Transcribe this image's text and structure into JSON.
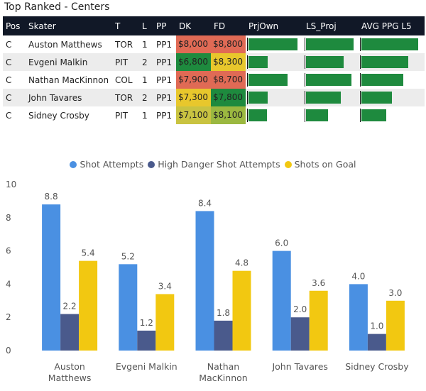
{
  "title": "Top Ranked - Centers",
  "table": {
    "columns": [
      "Pos",
      "Skater",
      "T",
      "L",
      "PP",
      "DK",
      "FD",
      "PrjOwn",
      "LS_Proj",
      "AVG PPG L5"
    ],
    "rows": [
      {
        "pos": "C",
        "skater": "Auston Matthews",
        "team": "TOR",
        "line": "1",
        "pp": "PP1",
        "dk": "$8,000",
        "fd": "$8,800",
        "dk_color": "#e06a55",
        "fd_color": "#e06a55",
        "prjown": 0.98,
        "ls_proj": 0.98,
        "avg_ppg": 0.98
      },
      {
        "pos": "C",
        "skater": "Evgeni Malkin",
        "team": "PIT",
        "line": "2",
        "pp": "PP1",
        "dk": "$6,800",
        "fd": "$8,300",
        "dk_color": "#1e8a3e",
        "fd_color": "#e8c72c",
        "prjown": 0.38,
        "ls_proj": 0.78,
        "avg_ppg": 0.8
      },
      {
        "pos": "C",
        "skater": "Nathan MacKinnon",
        "team": "COL",
        "line": "1",
        "pp": "PP1",
        "dk": "$7,900",
        "fd": "$8,700",
        "dk_color": "#e06a55",
        "fd_color": "#e06a55",
        "prjown": 0.77,
        "ls_proj": 0.94,
        "avg_ppg": 0.72
      },
      {
        "pos": "C",
        "skater": "John Tavares",
        "team": "TOR",
        "line": "2",
        "pp": "PP1",
        "dk": "$7,300",
        "fd": "$7,800",
        "dk_color": "#e8c72c",
        "fd_color": "#1e8a3e",
        "prjown": 0.38,
        "ls_proj": 0.72,
        "avg_ppg": 0.52
      },
      {
        "pos": "C",
        "skater": "Sidney Crosby",
        "team": "PIT",
        "line": "1",
        "pp": "PP1",
        "dk": "$7,100",
        "fd": "$8,100",
        "dk_color": "#c9c341",
        "fd_color": "#9bb840",
        "prjown": 0.36,
        "ls_proj": 0.46,
        "avg_ppg": 0.43
      }
    ]
  },
  "chart_data": {
    "type": "bar",
    "categories": [
      [
        "Auston",
        "Matthews"
      ],
      [
        "Evgeni Malkin"
      ],
      [
        "Nathan",
        "MacKinnon"
      ],
      [
        "John Tavares"
      ],
      [
        "Sidney Crosby"
      ]
    ],
    "series": [
      {
        "name": "Shot Attempts",
        "color": "#4a90e2",
        "values": [
          8.8,
          5.2,
          8.4,
          6.0,
          4.0
        ],
        "labels": [
          "8.8",
          "5.2",
          "8.4",
          "6.0",
          "4.0"
        ]
      },
      {
        "name": "High Danger Shot Attempts",
        "color": "#4a5a8c",
        "values": [
          2.2,
          1.2,
          1.8,
          2.0,
          1.0
        ],
        "labels": [
          "2.2",
          "1.2",
          "1.8",
          "2.0",
          "1.0"
        ]
      },
      {
        "name": "Shots on Goal",
        "color": "#f2c811",
        "values": [
          5.4,
          3.4,
          4.8,
          3.6,
          3.0
        ],
        "labels": [
          "5.4",
          "3.4",
          "4.8",
          "3.6",
          "3.0"
        ]
      }
    ],
    "ylim": [
      0,
      10
    ],
    "yticks": [
      "0",
      "2",
      "4",
      "6",
      "8",
      "10"
    ],
    "legend_position": "top-center",
    "grid": false
  }
}
